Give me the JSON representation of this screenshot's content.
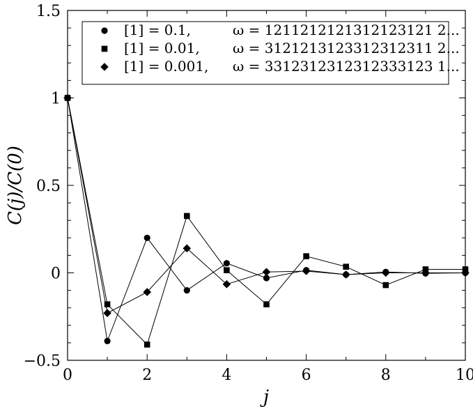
{
  "chart_data": {
    "type": "line",
    "title": "",
    "xlabel": "j",
    "ylabel": "C(j)/C(0)",
    "xlim": [
      0,
      10
    ],
    "ylim": [
      -0.5,
      1.5
    ],
    "xticks": [
      0,
      2,
      4,
      6,
      8,
      10
    ],
    "yticks": [
      -0.5,
      0,
      0.5,
      1,
      1.5
    ],
    "x_tick_labels": [
      "0",
      "2",
      "4",
      "6",
      "8",
      "10"
    ],
    "y_tick_labels": [
      "−0.5",
      "0",
      "0.5",
      "1",
      "1.5"
    ],
    "grid": false,
    "legend_position": "top-right",
    "x": [
      0,
      1,
      2,
      3,
      4,
      5,
      6,
      7,
      8,
      9,
      10
    ],
    "series": [
      {
        "marker": "circle",
        "prob": "[1] = 0.1,",
        "omega": "ω = 1211212121312123121 2...",
        "values": [
          1.0,
          -0.39,
          0.2,
          -0.1,
          0.055,
          -0.03,
          0.015,
          -0.01,
          0.005,
          -0.003,
          0.0
        ]
      },
      {
        "marker": "square",
        "prob": "[1] = 0.01,",
        "omega": "ω = 3121213123312312311 2...",
        "values": [
          1.0,
          -0.18,
          -0.41,
          0.325,
          0.015,
          -0.18,
          0.095,
          0.035,
          -0.07,
          0.02,
          0.02
        ]
      },
      {
        "marker": "diamond",
        "prob": "[1] = 0.001,",
        "omega": "ω = 3312312312312333123 1...",
        "values": [
          1.0,
          -0.23,
          -0.11,
          0.14,
          -0.065,
          0.005,
          0.01,
          -0.01,
          0.0,
          0.0,
          0.0
        ]
      }
    ]
  }
}
